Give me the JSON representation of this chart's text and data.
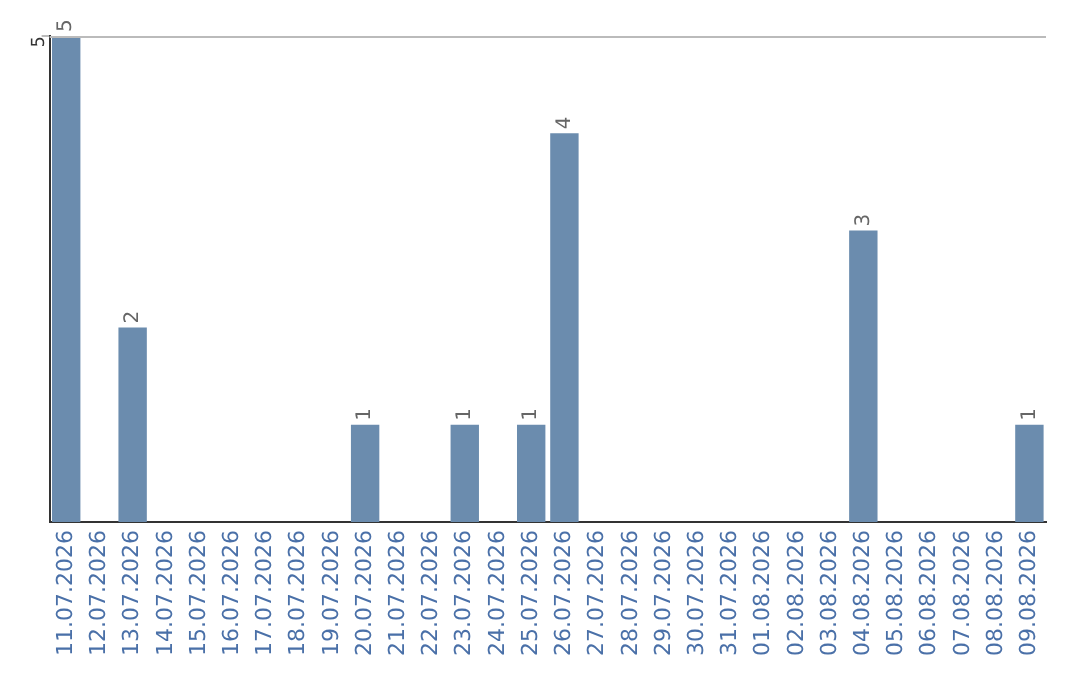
{
  "chart_data": {
    "type": "bar",
    "categories": [
      "11.07.2026",
      "12.07.2026",
      "13.07.2026",
      "14.07.2026",
      "15.07.2026",
      "16.07.2026",
      "17.07.2026",
      "18.07.2026",
      "19.07.2026",
      "20.07.2026",
      "21.07.2026",
      "22.07.2026",
      "23.07.2026",
      "24.07.2026",
      "25.07.2026",
      "26.07.2026",
      "27.07.2026",
      "28.07.2026",
      "29.07.2026",
      "30.07.2026",
      "31.07.2026",
      "01.08.2026",
      "02.08.2026",
      "03.08.2026",
      "04.08.2026",
      "05.08.2026",
      "06.08.2026",
      "07.08.2026",
      "08.08.2026",
      "09.08.2026"
    ],
    "values": [
      5,
      0,
      2,
      0,
      0,
      0,
      0,
      0,
      0,
      1,
      0,
      0,
      1,
      0,
      1,
      4,
      0,
      0,
      0,
      0,
      0,
      0,
      0,
      0,
      3,
      0,
      0,
      0,
      0,
      1
    ],
    "value_labels": [
      "5",
      null,
      "2",
      null,
      null,
      null,
      null,
      null,
      null,
      "1",
      null,
      null,
      "1",
      null,
      "1",
      "4",
      null,
      null,
      null,
      null,
      null,
      null,
      null,
      null,
      "3",
      null,
      null,
      null,
      null,
      "1"
    ],
    "color": "#6b8cae",
    "ylim": [
      0,
      5
    ],
    "yticks": [
      5
    ],
    "legend": false
  }
}
